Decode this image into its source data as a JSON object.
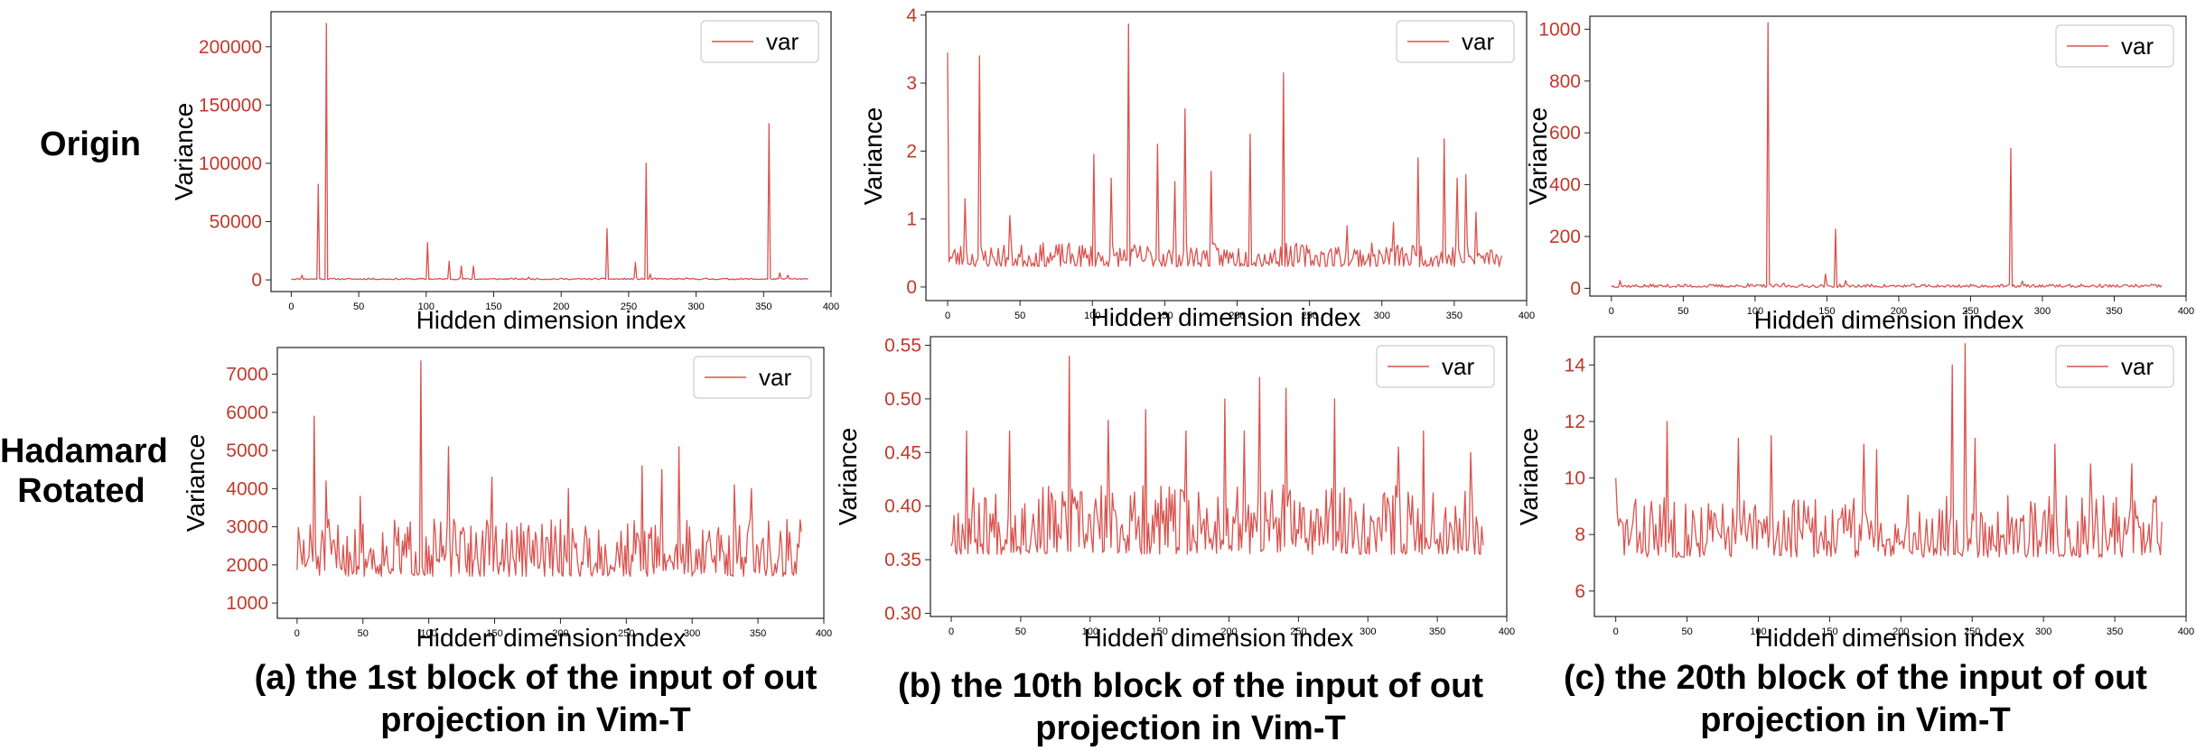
{
  "row_labels": {
    "top": "Origin",
    "bottom_line1": "Hadamard",
    "bottom_line2": "Rotated"
  },
  "captions": [
    {
      "line1": "(a) the 1st block of the input of out",
      "line2": "projection in Vim-T"
    },
    {
      "line1": "(b) the 10th block of the input of out",
      "line2": "projection in Vim-T"
    },
    {
      "line1": "(c) the 20th block of the input of out",
      "line2": "projection in Vim-T"
    }
  ],
  "colors": {
    "series": "#d9534f",
    "tick": "#c0392b",
    "axis": "#000000"
  },
  "chart_data": [
    {
      "id": "a_origin",
      "type": "line",
      "series_name": "var",
      "xlabel": "Hidden dimension index",
      "ylabel": "Variance",
      "xlim": [
        -15,
        400
      ],
      "ylim": [
        -10000,
        230000
      ],
      "xticks": [
        0,
        50,
        100,
        150,
        200,
        250,
        300,
        350,
        400
      ],
      "xticklabels": [
        "0",
        "50",
        "100",
        "150",
        "200",
        "250",
        "300",
        "350",
        "400"
      ],
      "yticks": [
        0,
        50000,
        100000,
        150000,
        200000
      ],
      "yticklabels": [
        "0",
        "50000",
        "100000",
        "150000",
        "200000"
      ],
      "n": 384,
      "base": 300,
      "noise": 1200,
      "seed": 11,
      "spikes": [
        [
          8,
          4000
        ],
        [
          20,
          82000
        ],
        [
          26,
          220000
        ],
        [
          57,
          1500
        ],
        [
          101,
          32000
        ],
        [
          117,
          16000
        ],
        [
          126,
          12000
        ],
        [
          135,
          12000
        ],
        [
          176,
          2500
        ],
        [
          234,
          44000
        ],
        [
          255,
          15000
        ],
        [
          263,
          100000
        ],
        [
          266,
          5000
        ],
        [
          354,
          134000
        ],
        [
          362,
          6000
        ],
        [
          368,
          4000
        ]
      ]
    },
    {
      "id": "b_origin",
      "type": "line",
      "series_name": "var",
      "xlabel": "Hidden dimension index",
      "ylabel": "Variance",
      "xlim": [
        -15,
        400
      ],
      "ylim": [
        -0.2,
        4.05
      ],
      "xticks": [
        0,
        50,
        100,
        150,
        200,
        250,
        300,
        350,
        400
      ],
      "xticklabels": [
        "0",
        "50",
        "100",
        "150",
        "200",
        "250",
        "300",
        "350",
        "400"
      ],
      "yticks": [
        0,
        1,
        2,
        3,
        4
      ],
      "yticklabels": [
        "0",
        "1",
        "2",
        "3",
        "4"
      ],
      "n": 384,
      "base": 0.3,
      "noise": 0.35,
      "seed": 23,
      "spikes": [
        [
          0,
          3.45
        ],
        [
          12,
          1.3
        ],
        [
          22,
          3.4
        ],
        [
          43,
          1.05
        ],
        [
          101,
          1.95
        ],
        [
          113,
          1.6
        ],
        [
          125,
          3.87
        ],
        [
          145,
          2.1
        ],
        [
          157,
          1.55
        ],
        [
          164,
          2.62
        ],
        [
          182,
          1.7
        ],
        [
          209,
          2.25
        ],
        [
          232,
          3.15
        ],
        [
          276,
          0.9
        ],
        [
          308,
          0.95
        ],
        [
          325,
          1.9
        ],
        [
          343,
          2.18
        ],
        [
          352,
          1.6
        ],
        [
          358,
          1.65
        ],
        [
          365,
          1.1
        ]
      ]
    },
    {
      "id": "c_origin",
      "type": "line",
      "series_name": "var",
      "xlabel": "Hidden dimension index",
      "ylabel": "Variance",
      "xlim": [
        -15,
        400
      ],
      "ylim": [
        -30,
        1050
      ],
      "xticks": [
        0,
        50,
        100,
        150,
        200,
        250,
        300,
        350,
        400
      ],
      "xticklabels": [
        "0",
        "50",
        "100",
        "150",
        "200",
        "250",
        "300",
        "350",
        "400"
      ],
      "yticks": [
        0,
        200,
        400,
        600,
        800,
        1000
      ],
      "yticklabels": [
        "0",
        "200",
        "400",
        "600",
        "800",
        "1000"
      ],
      "n": 384,
      "base": 4,
      "noise": 12,
      "seed": 37,
      "spikes": [
        [
          6,
          30
        ],
        [
          52,
          14
        ],
        [
          95,
          18
        ],
        [
          109,
          1025
        ],
        [
          120,
          20
        ],
        [
          149,
          55
        ],
        [
          156,
          228
        ],
        [
          163,
          30
        ],
        [
          278,
          540
        ],
        [
          286,
          28
        ],
        [
          310,
          12
        ],
        [
          350,
          10
        ]
      ]
    },
    {
      "id": "a_rotated",
      "type": "line",
      "series_name": "var",
      "xlabel": "Hidden dimension index",
      "ylabel": "Variance",
      "xlim": [
        -15,
        400
      ],
      "ylim": [
        600,
        7700
      ],
      "xticks": [
        0,
        50,
        100,
        150,
        200,
        250,
        300,
        350,
        400
      ],
      "xticklabels": [
        "0",
        "50",
        "100",
        "150",
        "200",
        "250",
        "300",
        "350",
        "400"
      ],
      "yticks": [
        1000,
        2000,
        3000,
        4000,
        5000,
        6000,
        7000
      ],
      "yticklabels": [
        "1000",
        "2000",
        "3000",
        "4000",
        "5000",
        "6000",
        "7000"
      ],
      "n": 384,
      "base": 1700,
      "noise": 1500,
      "seed": 51,
      "spikes": [
        [
          13,
          5900
        ],
        [
          22,
          4200
        ],
        [
          48,
          3800
        ],
        [
          94,
          7350
        ],
        [
          115,
          5100
        ],
        [
          148,
          4300
        ],
        [
          206,
          4000
        ],
        [
          262,
          4600
        ],
        [
          277,
          4500
        ],
        [
          290,
          5100
        ],
        [
          332,
          4100
        ],
        [
          345,
          4000
        ]
      ]
    },
    {
      "id": "b_rotated",
      "type": "line",
      "series_name": "var",
      "xlabel": "Hidden dimension index",
      "ylabel": "Variance",
      "xlim": [
        -15,
        400
      ],
      "ylim": [
        0.297,
        0.558
      ],
      "xticks": [
        0,
        50,
        100,
        150,
        200,
        250,
        300,
        350,
        400
      ],
      "xticklabels": [
        "0",
        "50",
        "100",
        "150",
        "200",
        "250",
        "300",
        "350",
        "400"
      ],
      "yticks": [
        0.3,
        0.35,
        0.4,
        0.45,
        0.5,
        0.55
      ],
      "yticklabels": [
        "0.30",
        "0.35",
        "0.40",
        "0.45",
        "0.50",
        "0.55"
      ],
      "n": 384,
      "base": 0.355,
      "noise": 0.065,
      "seed": 67,
      "spikes": [
        [
          11,
          0.47
        ],
        [
          42,
          0.47
        ],
        [
          85,
          0.54
        ],
        [
          113,
          0.48
        ],
        [
          140,
          0.49
        ],
        [
          169,
          0.47
        ],
        [
          197,
          0.5
        ],
        [
          211,
          0.47
        ],
        [
          222,
          0.52
        ],
        [
          241,
          0.51
        ],
        [
          276,
          0.5
        ],
        [
          322,
          0.455
        ],
        [
          340,
          0.47
        ],
        [
          374,
          0.45
        ]
      ]
    },
    {
      "id": "c_rotated",
      "type": "line",
      "series_name": "var",
      "xlabel": "Hidden dimension index",
      "ylabel": "Variance",
      "xlim": [
        -15,
        400
      ],
      "ylim": [
        5.1,
        15
      ],
      "xticks": [
        0,
        50,
        100,
        150,
        200,
        250,
        300,
        350,
        400
      ],
      "xticklabels": [
        "0",
        "50",
        "100",
        "150",
        "200",
        "250",
        "300",
        "350",
        "400"
      ],
      "yticks": [
        6,
        8,
        10,
        12,
        14
      ],
      "yticklabels": [
        "6",
        "8",
        "10",
        "12",
        "14"
      ],
      "n": 384,
      "base": 7.2,
      "noise": 2.2,
      "seed": 83,
      "spikes": [
        [
          0,
          10
        ],
        [
          36,
          12
        ],
        [
          86,
          11.4
        ],
        [
          109,
          11.5
        ],
        [
          174,
          11.2
        ],
        [
          183,
          11
        ],
        [
          236,
          14
        ],
        [
          245,
          14.75
        ],
        [
          252,
          11.4
        ],
        [
          308,
          11.2
        ],
        [
          333,
          10.5
        ],
        [
          362,
          10.5
        ]
      ]
    }
  ]
}
